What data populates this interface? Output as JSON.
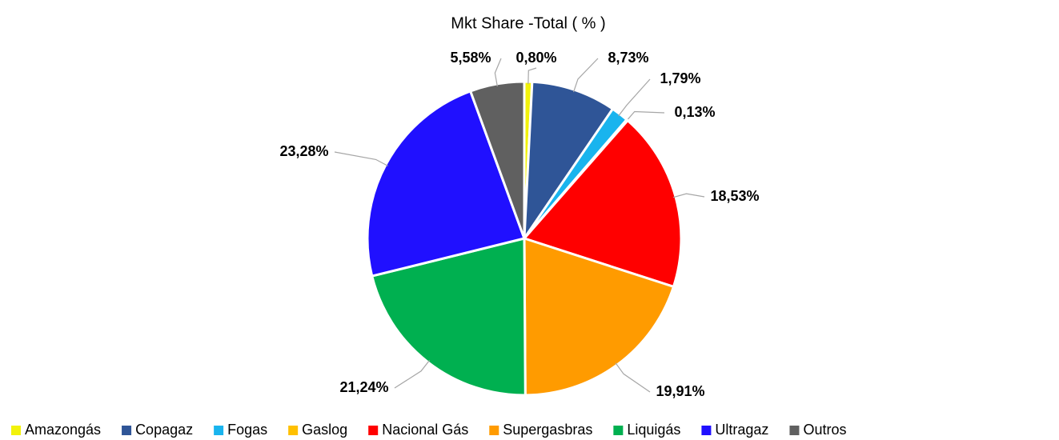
{
  "chart_data": {
    "type": "pie",
    "title": "Mkt Share -Total ( % )",
    "categories": [
      "Amazongás",
      "Copagaz",
      "Fogas",
      "Gaslog",
      "Nacional Gás",
      "Supergasbras",
      "Liquigás",
      "Ultragaz",
      "Outros"
    ],
    "values": [
      0.8,
      8.73,
      1.79,
      0.13,
      18.53,
      19.91,
      21.24,
      23.28,
      5.58
    ],
    "value_labels": [
      "0,80%",
      "8,73%",
      "1,79%",
      "0,13%",
      "18,53%",
      "19,91%",
      "21,24%",
      "23,28%",
      "5,58%"
    ],
    "colors": [
      "#f2f20a",
      "#2f5597",
      "#19b4ee",
      "#ffc000",
      "#ff0000",
      "#ff9b00",
      "#00b050",
      "#2010ff",
      "#606060"
    ],
    "legend": "bottom"
  }
}
